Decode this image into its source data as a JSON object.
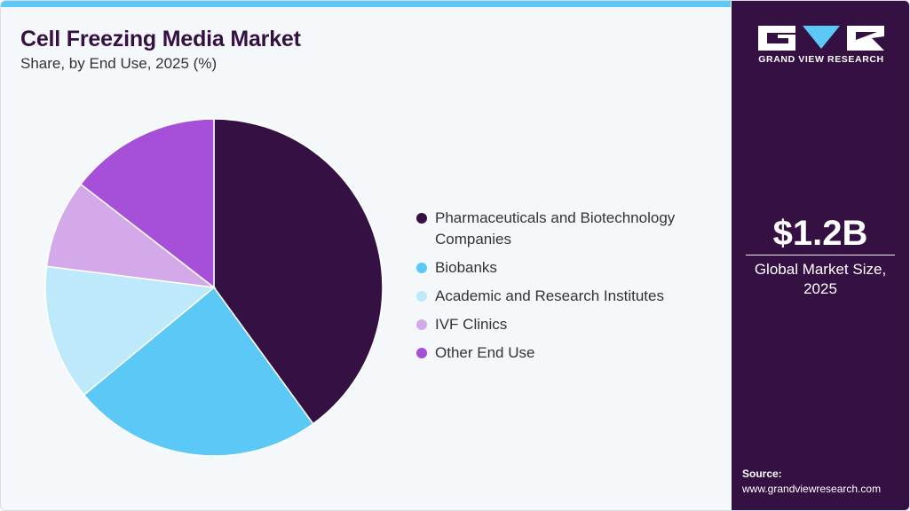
{
  "header": {
    "title": "Cell Freezing Media Market",
    "subtitle": "Share, by End Use, 2025 (%)"
  },
  "colors": {
    "accent_bar": "#5bc8f5",
    "sidebar_bg": "#351043",
    "main_bg": "#f4f8fb"
  },
  "chart_data": {
    "type": "pie",
    "title": "Cell Freezing Media Market",
    "subtitle": "Share, by End Use, 2025 (%)",
    "legend_position": "right",
    "slices": [
      {
        "label": "Pharmaceuticals and Biotechnology Companies",
        "label_lines": [
          "Pharmaceuticals and Biotechnology",
          "Companies"
        ],
        "value": 40,
        "color": "#351043"
      },
      {
        "label": "Biobanks",
        "label_lines": [
          "Biobanks"
        ],
        "value": 24,
        "color": "#5bc8f5"
      },
      {
        "label": "Academic and Research Institutes",
        "label_lines": [
          "Academic and Research Institutes"
        ],
        "value": 13,
        "color": "#bde9fa"
      },
      {
        "label": "IVF Clinics",
        "label_lines": [
          "IVF Clinics"
        ],
        "value": 8.5,
        "color": "#d4a9ea"
      },
      {
        "label": "Other End Use",
        "label_lines": [
          "Other End Use"
        ],
        "value": 14.5,
        "color": "#a64fd8"
      }
    ]
  },
  "sidebar": {
    "logo_text": "GRAND VIEW RESEARCH",
    "market_value": "$1.2B",
    "market_label_line1": "Global Market Size,",
    "market_label_line2": "2025",
    "source_label": "Source:",
    "source_url": "www.grandviewresearch.com"
  }
}
